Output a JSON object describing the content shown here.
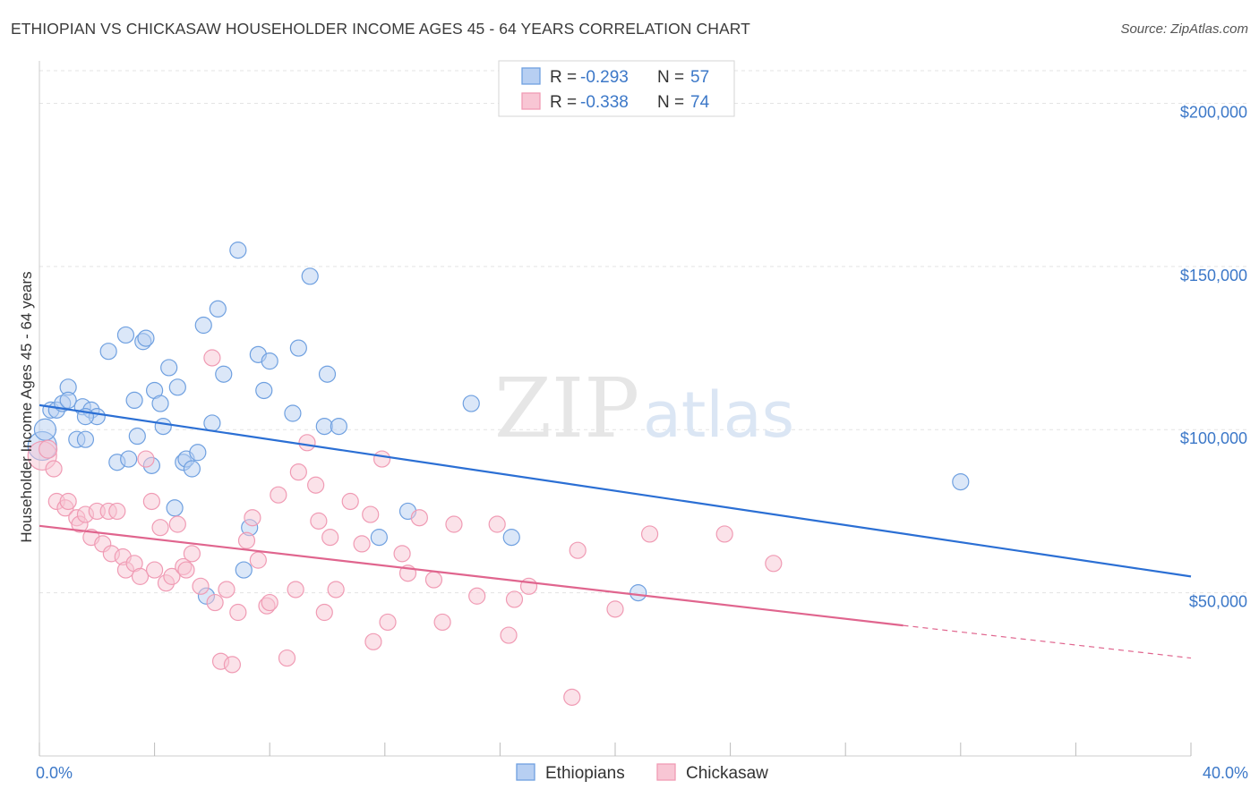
{
  "title": "ETHIOPIAN VS CHICKASAW HOUSEHOLDER INCOME AGES 45 - 64 YEARS CORRELATION CHART",
  "source": "Source: ZipAtlas.com",
  "watermark": {
    "zip": "ZIP",
    "atlas": "atlas"
  },
  "legend_top": {
    "r_label": "R =",
    "n_label": "N =",
    "rows": [
      {
        "r": "-0.293",
        "n": "57"
      },
      {
        "r": "-0.338",
        "n": "74"
      }
    ]
  },
  "chart_data": {
    "type": "scatter",
    "title": "ETHIOPIAN VS CHICKASAW HOUSEHOLDER INCOME AGES 45 - 64 YEARS CORRELATION CHART",
    "xlabel": "",
    "ylabel": "Householder Income Ages 45 - 64 years",
    "xlim": [
      0,
      40
    ],
    "ylim": [
      0,
      210000
    ],
    "x_tick_labels": [
      {
        "value": 0,
        "label": "0.0%"
      },
      {
        "value": 40,
        "label": "40.0%"
      }
    ],
    "y_tick_labels": [
      {
        "value": 50000,
        "label": "$50,000"
      },
      {
        "value": 100000,
        "label": "$100,000"
      },
      {
        "value": 150000,
        "label": "$150,000"
      },
      {
        "value": 200000,
        "label": "$200,000"
      }
    ],
    "grid": true,
    "legend_position": "top-center and bottom",
    "series": [
      {
        "name": "Ethiopians",
        "color": "#6fa0e0",
        "fill": "#b7cff2",
        "trend": {
          "x0": 0,
          "y0": 107500,
          "x1": 40,
          "y1": 55000,
          "color": "#2b6fd4"
        },
        "points": [
          [
            0.1,
            95000,
            16
          ],
          [
            0.2,
            100000,
            12
          ],
          [
            0.4,
            106000,
            9
          ],
          [
            0.6,
            106000,
            9
          ],
          [
            0.8,
            108000,
            9
          ],
          [
            1.0,
            113000,
            9
          ],
          [
            1.0,
            109000,
            9
          ],
          [
            1.3,
            97000,
            9
          ],
          [
            1.5,
            107000,
            9
          ],
          [
            1.6,
            97000,
            9
          ],
          [
            1.8,
            106000,
            9
          ],
          [
            2.0,
            104000,
            9
          ],
          [
            1.6,
            104000,
            9
          ],
          [
            2.4,
            124000,
            9
          ],
          [
            2.7,
            90000,
            9
          ],
          [
            3.0,
            129000,
            9
          ],
          [
            3.1,
            91000,
            9
          ],
          [
            3.3,
            109000,
            9
          ],
          [
            3.4,
            98000,
            9
          ],
          [
            3.6,
            127000,
            9
          ],
          [
            3.7,
            128000,
            9
          ],
          [
            3.9,
            89000,
            9
          ],
          [
            4.0,
            112000,
            9
          ],
          [
            4.2,
            108000,
            9
          ],
          [
            4.3,
            101000,
            9
          ],
          [
            4.5,
            119000,
            9
          ],
          [
            4.7,
            76000,
            9
          ],
          [
            4.8,
            113000,
            9
          ],
          [
            5.0,
            90000,
            9
          ],
          [
            5.1,
            91000,
            9
          ],
          [
            5.3,
            88000,
            9
          ],
          [
            5.5,
            93000,
            9
          ],
          [
            5.8,
            49000,
            9
          ],
          [
            5.7,
            132000,
            9
          ],
          [
            6.0,
            102000,
            9
          ],
          [
            6.2,
            137000,
            9
          ],
          [
            6.4,
            117000,
            9
          ],
          [
            6.9,
            155000,
            9
          ],
          [
            7.1,
            57000,
            9
          ],
          [
            7.3,
            70000,
            9
          ],
          [
            7.6,
            123000,
            9
          ],
          [
            7.8,
            112000,
            9
          ],
          [
            8.0,
            121000,
            9
          ],
          [
            8.8,
            105000,
            9
          ],
          [
            9.0,
            125000,
            9
          ],
          [
            9.4,
            147000,
            9
          ],
          [
            9.9,
            101000,
            9
          ],
          [
            10.0,
            117000,
            9
          ],
          [
            10.4,
            101000,
            9
          ],
          [
            11.8,
            67000,
            9
          ],
          [
            12.8,
            75000,
            9
          ],
          [
            15.0,
            108000,
            9
          ],
          [
            16.4,
            67000,
            9
          ],
          [
            20.8,
            50000,
            9
          ],
          [
            32.0,
            84000,
            9
          ]
        ]
      },
      {
        "name": "Chickasaw",
        "color": "#f09bb4",
        "fill": "#f8c6d4",
        "trend": {
          "x0": 0,
          "y0": 70500,
          "x1": 30,
          "y1": 40000,
          "dash_x1": 40,
          "dash_y1": 30000,
          "color": "#e0658e"
        },
        "points": [
          [
            0.1,
            92000,
            16
          ],
          [
            0.3,
            94000,
            10
          ],
          [
            0.5,
            88000,
            9
          ],
          [
            0.6,
            78000,
            9
          ],
          [
            0.9,
            76000,
            9
          ],
          [
            1.0,
            78000,
            9
          ],
          [
            1.3,
            73000,
            9
          ],
          [
            1.4,
            71000,
            9
          ],
          [
            1.6,
            74000,
            9
          ],
          [
            1.8,
            67000,
            9
          ],
          [
            2.0,
            75000,
            9
          ],
          [
            2.2,
            65000,
            9
          ],
          [
            2.4,
            75000,
            9
          ],
          [
            2.5,
            62000,
            9
          ],
          [
            2.7,
            75000,
            9
          ],
          [
            2.9,
            61000,
            9
          ],
          [
            3.0,
            57000,
            9
          ],
          [
            3.3,
            59000,
            9
          ],
          [
            3.5,
            55000,
            9
          ],
          [
            3.7,
            91000,
            9
          ],
          [
            3.9,
            78000,
            9
          ],
          [
            4.0,
            57000,
            9
          ],
          [
            4.2,
            70000,
            9
          ],
          [
            4.4,
            53000,
            9
          ],
          [
            4.6,
            55000,
            9
          ],
          [
            4.8,
            71000,
            9
          ],
          [
            5.0,
            58000,
            9
          ],
          [
            5.1,
            57000,
            9
          ],
          [
            5.3,
            62000,
            9
          ],
          [
            5.6,
            52000,
            9
          ],
          [
            6.0,
            122000,
            9
          ],
          [
            6.1,
            47000,
            9
          ],
          [
            6.3,
            29000,
            9
          ],
          [
            6.5,
            51000,
            9
          ],
          [
            6.7,
            28000,
            9
          ],
          [
            6.9,
            44000,
            9
          ],
          [
            7.2,
            66000,
            9
          ],
          [
            7.4,
            73000,
            9
          ],
          [
            7.6,
            60000,
            9
          ],
          [
            7.9,
            46000,
            9
          ],
          [
            8.0,
            47000,
            9
          ],
          [
            8.3,
            80000,
            9
          ],
          [
            8.6,
            30000,
            9
          ],
          [
            8.9,
            51000,
            9
          ],
          [
            9.0,
            87000,
            9
          ],
          [
            9.3,
            96000,
            9
          ],
          [
            9.6,
            83000,
            9
          ],
          [
            9.7,
            72000,
            9
          ],
          [
            9.9,
            44000,
            9
          ],
          [
            10.1,
            67000,
            9
          ],
          [
            10.3,
            51000,
            9
          ],
          [
            10.8,
            78000,
            9
          ],
          [
            11.2,
            65000,
            9
          ],
          [
            11.5,
            74000,
            9
          ],
          [
            11.9,
            91000,
            9
          ],
          [
            11.6,
            35000,
            9
          ],
          [
            12.1,
            41000,
            9
          ],
          [
            12.6,
            62000,
            9
          ],
          [
            12.8,
            56000,
            9
          ],
          [
            13.2,
            73000,
            9
          ],
          [
            13.7,
            54000,
            9
          ],
          [
            14.0,
            41000,
            9
          ],
          [
            14.4,
            71000,
            9
          ],
          [
            15.2,
            49000,
            9
          ],
          [
            15.9,
            71000,
            9
          ],
          [
            16.3,
            37000,
            9
          ],
          [
            16.5,
            48000,
            9
          ],
          [
            17.0,
            52000,
            9
          ],
          [
            18.5,
            18000,
            9
          ],
          [
            18.7,
            63000,
            9
          ],
          [
            20.0,
            45000,
            9
          ],
          [
            21.2,
            68000,
            9
          ],
          [
            23.8,
            68000,
            9
          ],
          [
            25.5,
            59000,
            9
          ]
        ]
      }
    ]
  }
}
